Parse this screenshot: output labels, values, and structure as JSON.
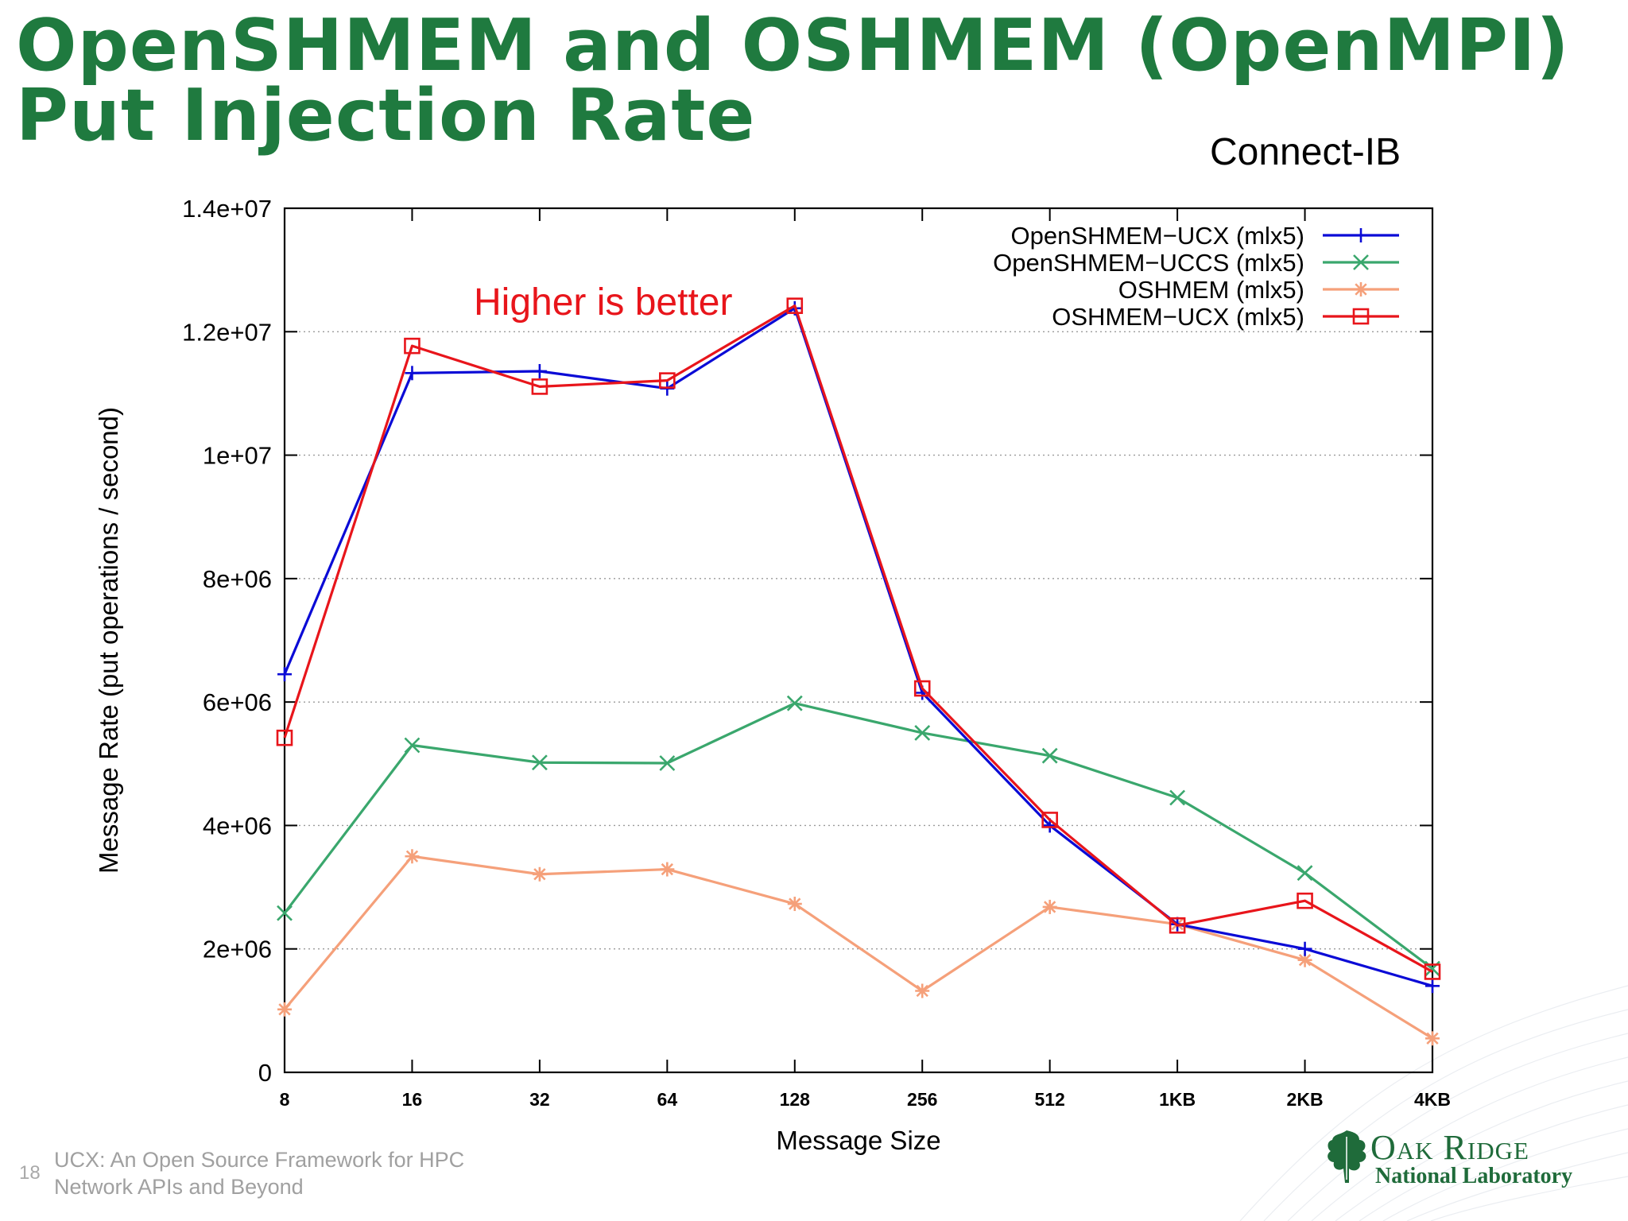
{
  "slide": {
    "title_line1": "OpenSHMEM and OSHMEM (OpenMPI)",
    "title_line2": "Put Injection Rate",
    "subtitle": "Connect-IB",
    "page_number": "18",
    "footer_line1": "UCX: An Open Source Framework for HPC",
    "footer_line2": "Network APIs and Beyond",
    "logo_org": "Oak Ridge",
    "logo_sub": "National Laboratory",
    "logo_icon": "leaf-icon",
    "brand_color": "#1f7a3f"
  },
  "chart_data": {
    "type": "line",
    "xlabel": "Message Size",
    "ylabel": "Message Rate (put operations / second)",
    "categories": [
      "8",
      "16",
      "32",
      "64",
      "128",
      "256",
      "512",
      "1KB",
      "2KB",
      "4KB"
    ],
    "ylim": [
      0,
      14000000
    ],
    "yticks": [
      0,
      2000000,
      4000000,
      6000000,
      8000000,
      10000000,
      12000000,
      14000000
    ],
    "ytick_labels": [
      "0",
      "2e+06",
      "4e+06",
      "6e+06",
      "8e+06",
      "1e+07",
      "1.2e+07",
      "1.4e+07"
    ],
    "grid": "horizontal dotted",
    "legend_position": "top-right",
    "annotation": "Higher is better",
    "annotation_color": "#e8151b",
    "series": [
      {
        "name": "OpenSHMEM−UCX (mlx5)",
        "color": "#0b0bd6",
        "marker": "plus",
        "values": [
          6450000,
          11330000,
          11360000,
          11080000,
          12380000,
          6150000,
          4000000,
          2400000,
          2000000,
          1400000
        ]
      },
      {
        "name": "OpenSHMEM−UCCS (mlx5)",
        "color": "#3aa76d",
        "marker": "cross",
        "values": [
          2580000,
          5300000,
          5020000,
          5010000,
          5980000,
          5500000,
          5130000,
          4450000,
          3230000,
          1680000
        ]
      },
      {
        "name": "OSHMEM (mlx5)",
        "color": "#f5a07a",
        "marker": "star",
        "values": [
          1020000,
          3500000,
          3210000,
          3290000,
          2730000,
          1320000,
          2680000,
          2400000,
          1820000,
          550000
        ]
      },
      {
        "name": "OSHMEM−UCX (mlx5)",
        "color": "#e8151b",
        "marker": "square",
        "values": [
          5420000,
          11770000,
          11110000,
          11210000,
          12420000,
          6220000,
          4090000,
          2380000,
          2780000,
          1630000
        ]
      }
    ]
  }
}
